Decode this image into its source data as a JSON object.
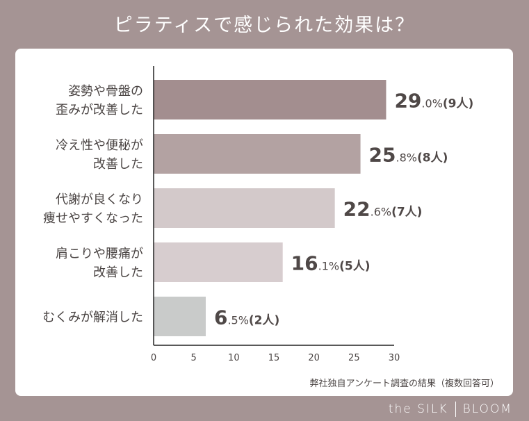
{
  "chart_data": {
    "type": "bar",
    "orientation": "horizontal",
    "title": "ピラティスで感じられた効果は？",
    "categories": [
      [
        "姿勢や骨盤の",
        "歪みが改善した"
      ],
      [
        "冷え性や便秘が",
        "改善した"
      ],
      [
        "代謝が良くなり",
        "痩せやすくなった"
      ],
      [
        "肩こりや腰痛が",
        "改善した"
      ],
      [
        "むくみが解消した"
      ]
    ],
    "values": [
      29.0,
      25.8,
      22.6,
      16.1,
      6.5
    ],
    "counts": [
      "9人",
      "8人",
      "7人",
      "5人",
      "2人"
    ],
    "data_labels": [
      {
        "main": "29",
        "dec": ".0%",
        "count": "(9人)"
      },
      {
        "main": "25",
        "dec": ".8%",
        "count": "(8人)"
      },
      {
        "main": "22",
        "dec": ".6%",
        "count": "(7人)"
      },
      {
        "main": "16",
        "dec": ".1%",
        "count": "(5人)"
      },
      {
        "main": "6",
        "dec": ".5%",
        "count": "(2人)"
      }
    ],
    "colors": [
      "#a38e8f",
      "#b3a2a2",
      "#d3c9ca",
      "#d7cdcf",
      "#c9cbca"
    ],
    "xlim": [
      0,
      30
    ],
    "xticks": [
      "0",
      "5",
      "10",
      "15",
      "20",
      "25",
      "30"
    ],
    "grid": false,
    "note": "弊社独自アンケート調査の結果（複数回答可）"
  },
  "brand": {
    "left": "the SILK",
    "right": "BLOOM"
  },
  "background": "#a59494"
}
